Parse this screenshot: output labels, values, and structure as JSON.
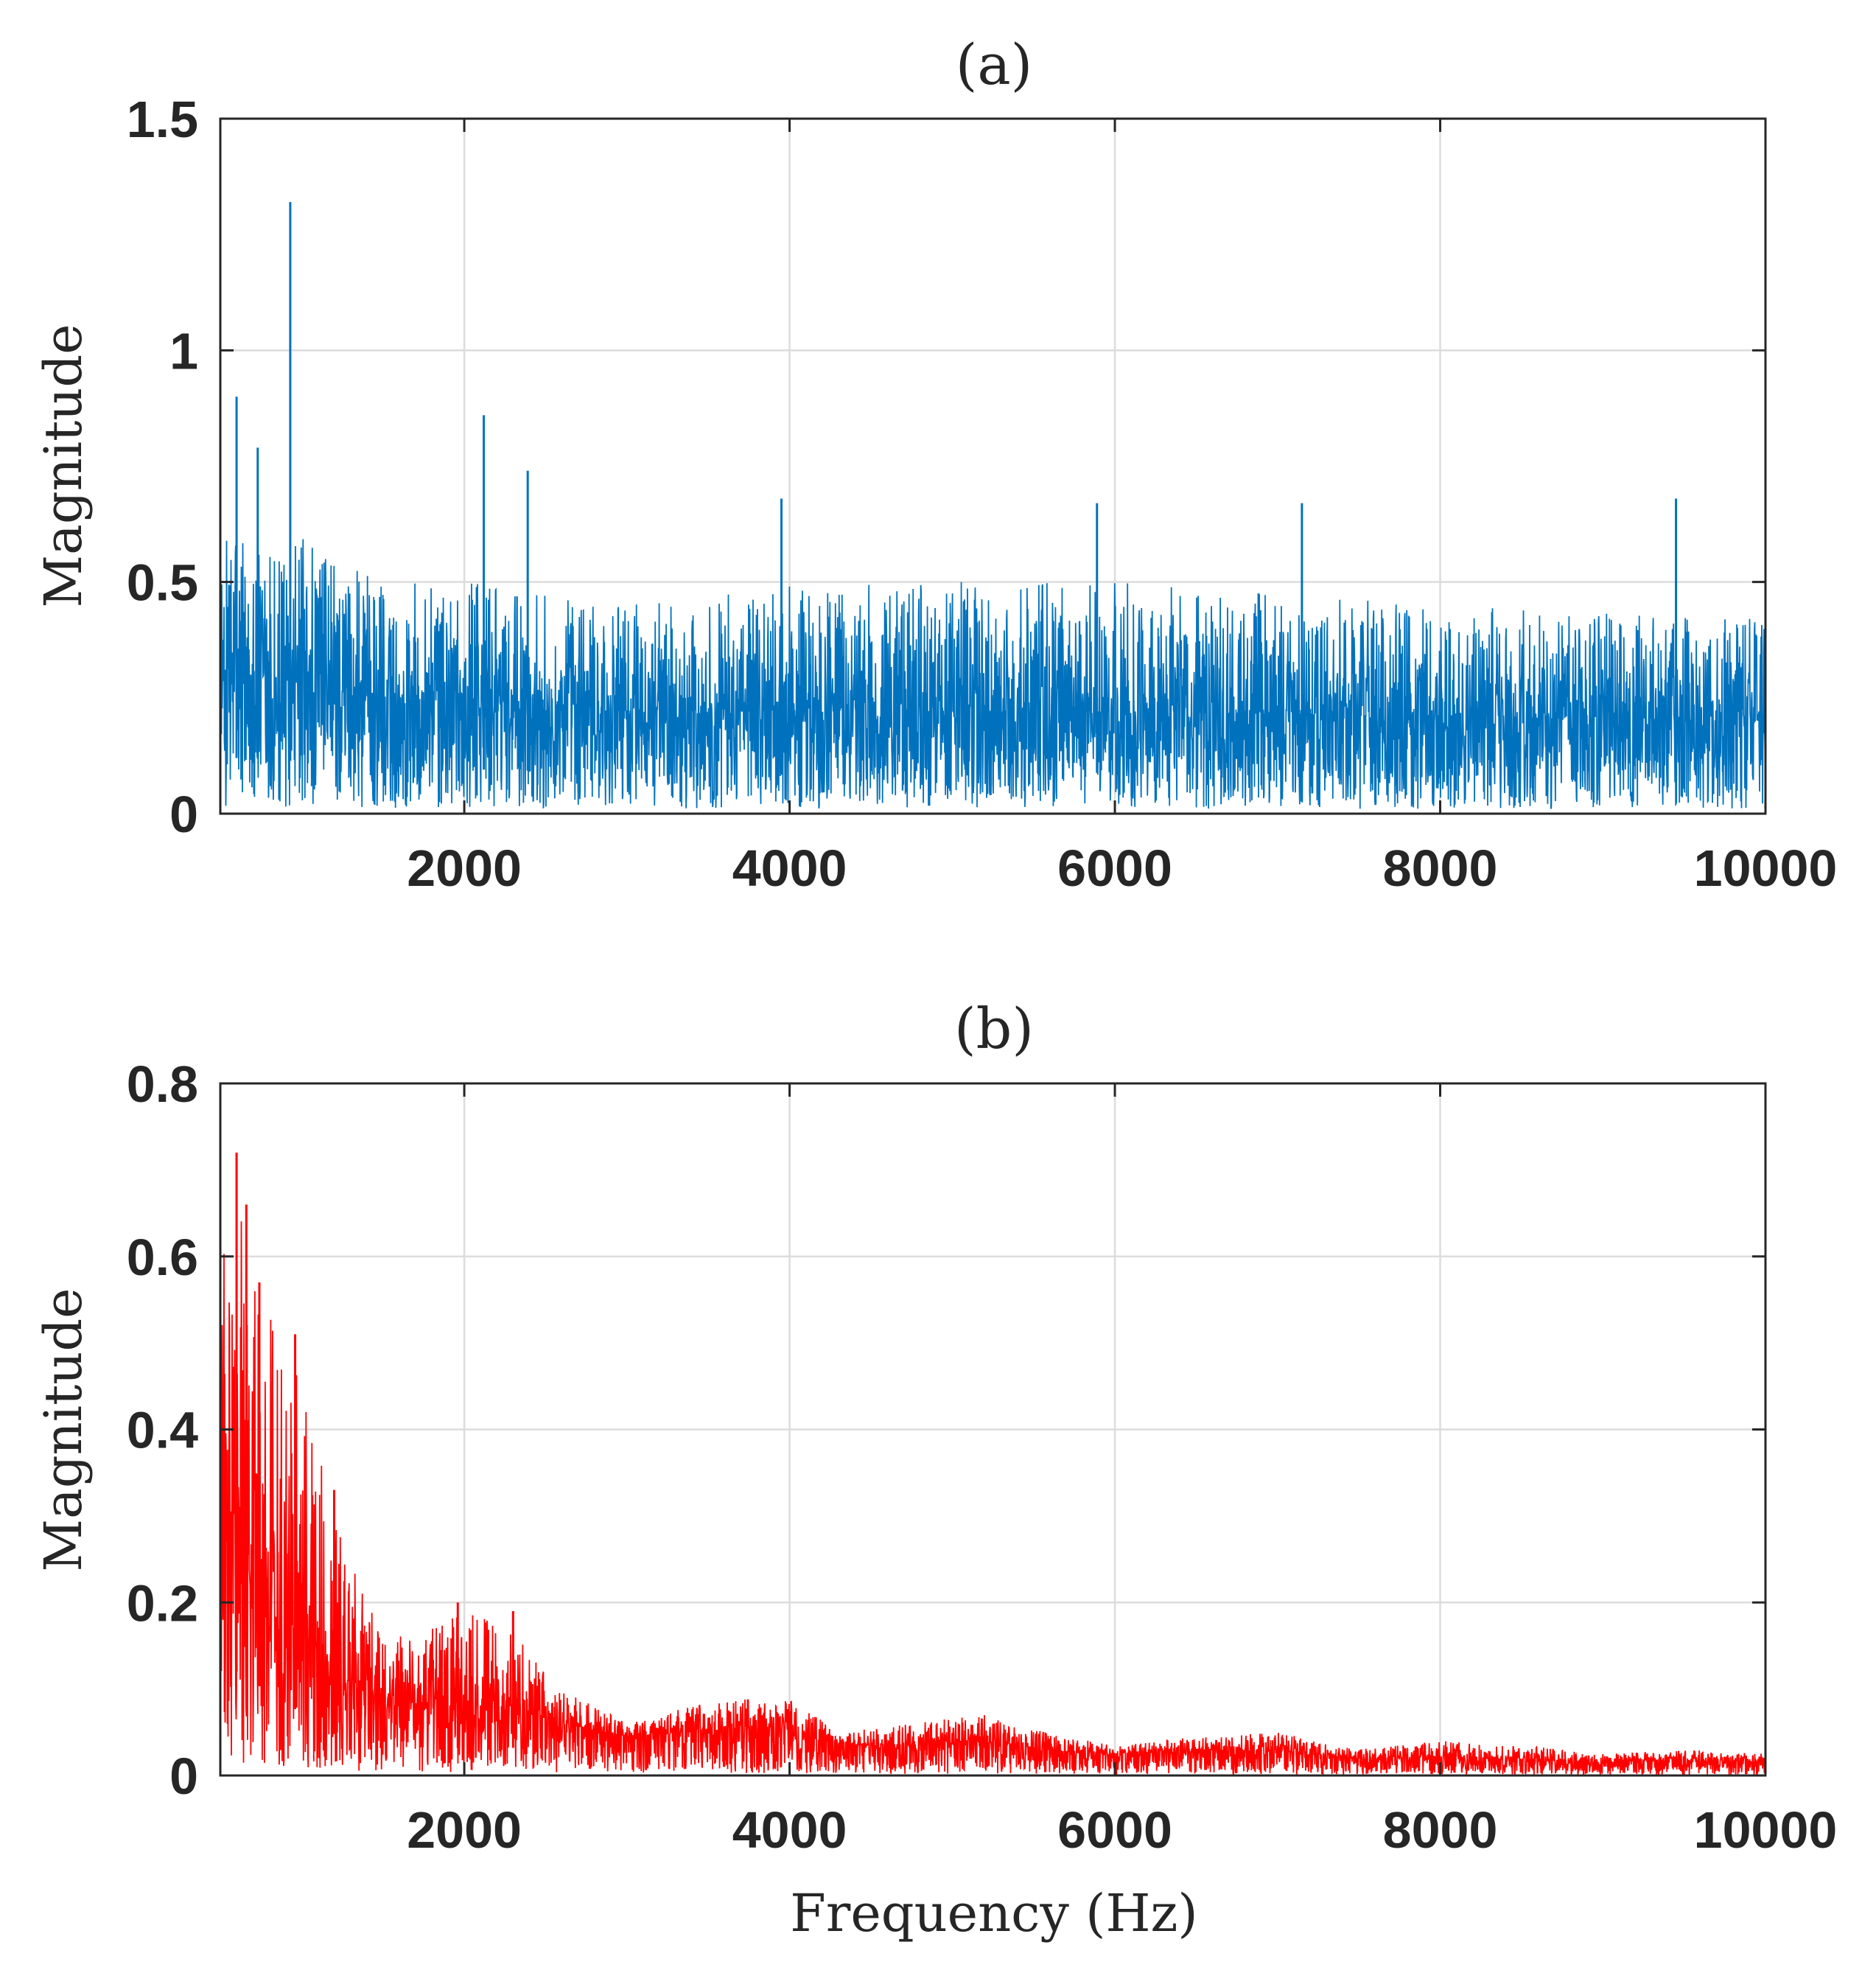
{
  "chart_data": [
    {
      "type": "line",
      "title": "(a)",
      "xlabel": "",
      "ylabel": "Magnitude",
      "xlim": [
        500,
        10000
      ],
      "ylim": [
        0,
        1.5
      ],
      "xticks": [
        2000,
        4000,
        6000,
        8000,
        10000
      ],
      "yticks": [
        0,
        0.5,
        1,
        1.5
      ],
      "grid": true,
      "color": "#0072BD",
      "noise_profile": {
        "x": [
          500,
          700,
          1000,
          1500,
          2000,
          3000,
          4000,
          6000,
          8000,
          10000
        ],
        "mean": [
          0.3,
          0.3,
          0.28,
          0.25,
          0.24,
          0.22,
          0.22,
          0.22,
          0.21,
          0.2
        ],
        "max": [
          0.6,
          0.65,
          0.6,
          0.5,
          0.5,
          0.45,
          0.5,
          0.5,
          0.45,
          0.42
        ]
      },
      "peaks": [
        {
          "x": 600,
          "y": 0.9
        },
        {
          "x": 730,
          "y": 0.79
        },
        {
          "x": 930,
          "y": 1.32
        },
        {
          "x": 2120,
          "y": 0.86
        },
        {
          "x": 2390,
          "y": 0.74
        },
        {
          "x": 3950,
          "y": 0.68
        },
        {
          "x": 5890,
          "y": 0.67
        },
        {
          "x": 7150,
          "y": 0.67
        },
        {
          "x": 9450,
          "y": 0.68
        }
      ]
    },
    {
      "type": "line",
      "title": "(b)",
      "xlabel": "Frequency (Hz)",
      "ylabel": "Magnitude",
      "xlim": [
        500,
        10000
      ],
      "ylim": [
        0,
        0.8
      ],
      "xticks": [
        2000,
        4000,
        6000,
        8000,
        10000
      ],
      "yticks": [
        0,
        0.2,
        0.4,
        0.6,
        0.8
      ],
      "grid": true,
      "color": "#FF0000",
      "envelope": {
        "x": [
          500,
          600,
          800,
          1000,
          1200,
          1500,
          1800,
          2000,
          2300,
          2600,
          3000,
          3400,
          3800,
          4000,
          4300,
          4700,
          5200,
          5600,
          6000,
          6500,
          7000,
          7500,
          8000,
          8500,
          9000,
          9500,
          10000
        ],
        "mean": [
          0.28,
          0.3,
          0.24,
          0.18,
          0.12,
          0.09,
          0.08,
          0.08,
          0.08,
          0.06,
          0.045,
          0.05,
          0.055,
          0.05,
          0.035,
          0.035,
          0.04,
          0.03,
          0.025,
          0.03,
          0.028,
          0.02,
          0.022,
          0.02,
          0.015,
          0.018,
          0.015
        ],
        "max": [
          0.6,
          0.66,
          0.55,
          0.45,
          0.3,
          0.16,
          0.17,
          0.19,
          0.17,
          0.1,
          0.06,
          0.08,
          0.09,
          0.09,
          0.05,
          0.06,
          0.07,
          0.05,
          0.035,
          0.045,
          0.05,
          0.03,
          0.04,
          0.035,
          0.025,
          0.03,
          0.025
        ]
      },
      "peaks": [
        {
          "x": 600,
          "y": 0.72
        },
        {
          "x": 660,
          "y": 0.66
        },
        {
          "x": 740,
          "y": 0.57
        },
        {
          "x": 960,
          "y": 0.51
        },
        {
          "x": 1200,
          "y": 0.33
        },
        {
          "x": 1960,
          "y": 0.2
        },
        {
          "x": 2300,
          "y": 0.19
        }
      ]
    }
  ]
}
